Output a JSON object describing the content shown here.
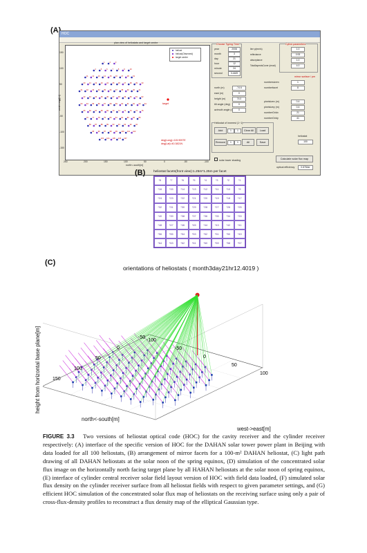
{
  "panel_labels": {
    "a": "(A)",
    "b": "(B)",
    "c": "(C)"
  },
  "panelA": {
    "window_title": "HOC",
    "plot_title": "plan view of heliostats and target centre",
    "legend": [
      "heliost",
      "heliost(Observed)",
      "target center"
    ],
    "target_label": "target",
    "ylabel": "west<-east[m]",
    "xlabel": "north<-south[m]",
    "yticks": [
      "150",
      "100",
      "50",
      "0",
      "-50",
      "-100",
      "-150"
    ],
    "xticks": [
      "250",
      "200",
      "150",
      "100",
      "50",
      "0",
      "-50",
      "-100"
    ],
    "annotations": [
      "deg(Long)=115.9097E",
      "deg(Lat)=40.3821N"
    ],
    "group_titles": [
      "Choose Typing Time",
      "Cylind parameters",
      "mirror surface / pm",
      "Heliostat of Innerest (1~1)"
    ],
    "time_fields": [
      {
        "label": "year",
        "value": "2008"
      },
      {
        "label": "month",
        "value": "3"
      },
      {
        "label": "day",
        "value": "21"
      },
      {
        "label": "hour",
        "value": "12"
      },
      {
        "label": "minute",
        "value": "24"
      },
      {
        "label": "second",
        "value": "0.4469"
      }
    ],
    "cyl_fields": [
      {
        "label": "line p(mm/s)",
        "value": "1.0"
      },
      {
        "label": "reflectance",
        "value": "0.93"
      },
      {
        "label": "absorptance",
        "value": "1.0"
      },
      {
        "label": "TotalAspectsCover (mrad)",
        "value": "4.0"
      }
    ],
    "mirror_fields": [
      {
        "label": "numbersizem",
        "value": "1"
      },
      {
        "label": "numberfacet",
        "value": "8"
      }
    ],
    "pos_fields": [
      {
        "label": "north (m)",
        "value": "-74.6"
      },
      {
        "label": "east (m)",
        "value": "0"
      },
      {
        "label": "height (m)",
        "value": "74.0"
      },
      {
        "label": "tilt angle (deg)",
        "value": "0"
      },
      {
        "label": "azimuth angle (deg)",
        "value": "0"
      }
    ],
    "right_fields": [
      {
        "label": "pixelsizex (m)",
        "value": "0.4"
      },
      {
        "label": "pixelsizey (m)",
        "value": "0.4"
      },
      {
        "label": "numberGridx",
        "value": "21"
      },
      {
        "label": "numberGridy",
        "value": "41"
      }
    ],
    "buttons": [
      "Add",
      "Clear All",
      "Load",
      "Remove",
      "All",
      "Save"
    ],
    "heliostat_field": "100",
    "checkbox": "solar tower shading",
    "calc_button": "Calculate solar flux map",
    "optical_efficiency_label": "optical efficiency",
    "optical_efficiency_value": "0.8784er"
  },
  "panelB": {
    "title": "heliostat facets(front view):1.25m*1.25m per facet",
    "facets": [
      "*8",
      "*7",
      "*6",
      "*5",
      "*4",
      "*3",
      "*2",
      "*1",
      "*16",
      "*15",
      "*14",
      "*13",
      "*12",
      "*11",
      "*10",
      "*9",
      "*24",
      "*23",
      "*22",
      "*21",
      "*20",
      "*19",
      "*18",
      "*17",
      "*32",
      "*31",
      "*30",
      "*29",
      "*28",
      "*27",
      "*26",
      "*25",
      "*40",
      "*39",
      "*38",
      "*37",
      "*36",
      "*35",
      "*34",
      "*33",
      "*48",
      "*47",
      "*46",
      "*45",
      "*44",
      "*43",
      "*42",
      "*41",
      "*56",
      "*55",
      "*54",
      "*53",
      "*52",
      "*51",
      "*50",
      "*49",
      "*64",
      "*63",
      "*62",
      "*61",
      "*60",
      "*59",
      "*58",
      "*57"
    ]
  },
  "chart_data": {
    "type": "scatter",
    "title": "orientations of heliostats ( month3day21hr12.4019 )",
    "xlabel": "north<-south[m]",
    "ylabel": "west->east[m]",
    "zlabel": "height from horizontal base plane[m]",
    "north_south_ticks": [
      "200",
      "150",
      "100",
      "50",
      "0",
      "-50"
    ],
    "west_east_ticks": [
      "100",
      "50",
      "0",
      "-50",
      "-100"
    ],
    "height_ticks": [
      "50",
      "0"
    ],
    "north_south_range": [
      -50,
      200
    ],
    "west_east_range": [
      -100,
      100
    ],
    "height_range": [
      0,
      80
    ]
  },
  "caption": {
    "figure": "FIGURE 3.3",
    "text": "Two versions of heliostat optical code (HOC) for the cavity receiver and the cylinder receiver respectively: (A) interface of the specific version of HOC for the DAHAN solar tower power plant in Beijing with data loaded for all 100 heliostats, (B) arrangement of mirror facets for a 100-m² DAHAN heliostat, (C) light path drawing of all DAHAN heliostats at the solar noon of the spring equinox, (D) simulation of the concentrated solar flux image on the horizontally north facing target plane by all HAHAN heliostats at the solar noon of spring equinox, (E) interface of cylinder central receiver solar field layout version of HOC with field data loaded, (F) simulated solar flux density on the cylinder receiver surface from all heliostat fields with respect to given parameter settings, and (G) efficient HOC simulation of the concentrated solar flux map of heliostats on the receiving surface using only a pair of cross-flux-density profiles to reconstruct a flux density map of the elliptical Gaussian type."
  }
}
